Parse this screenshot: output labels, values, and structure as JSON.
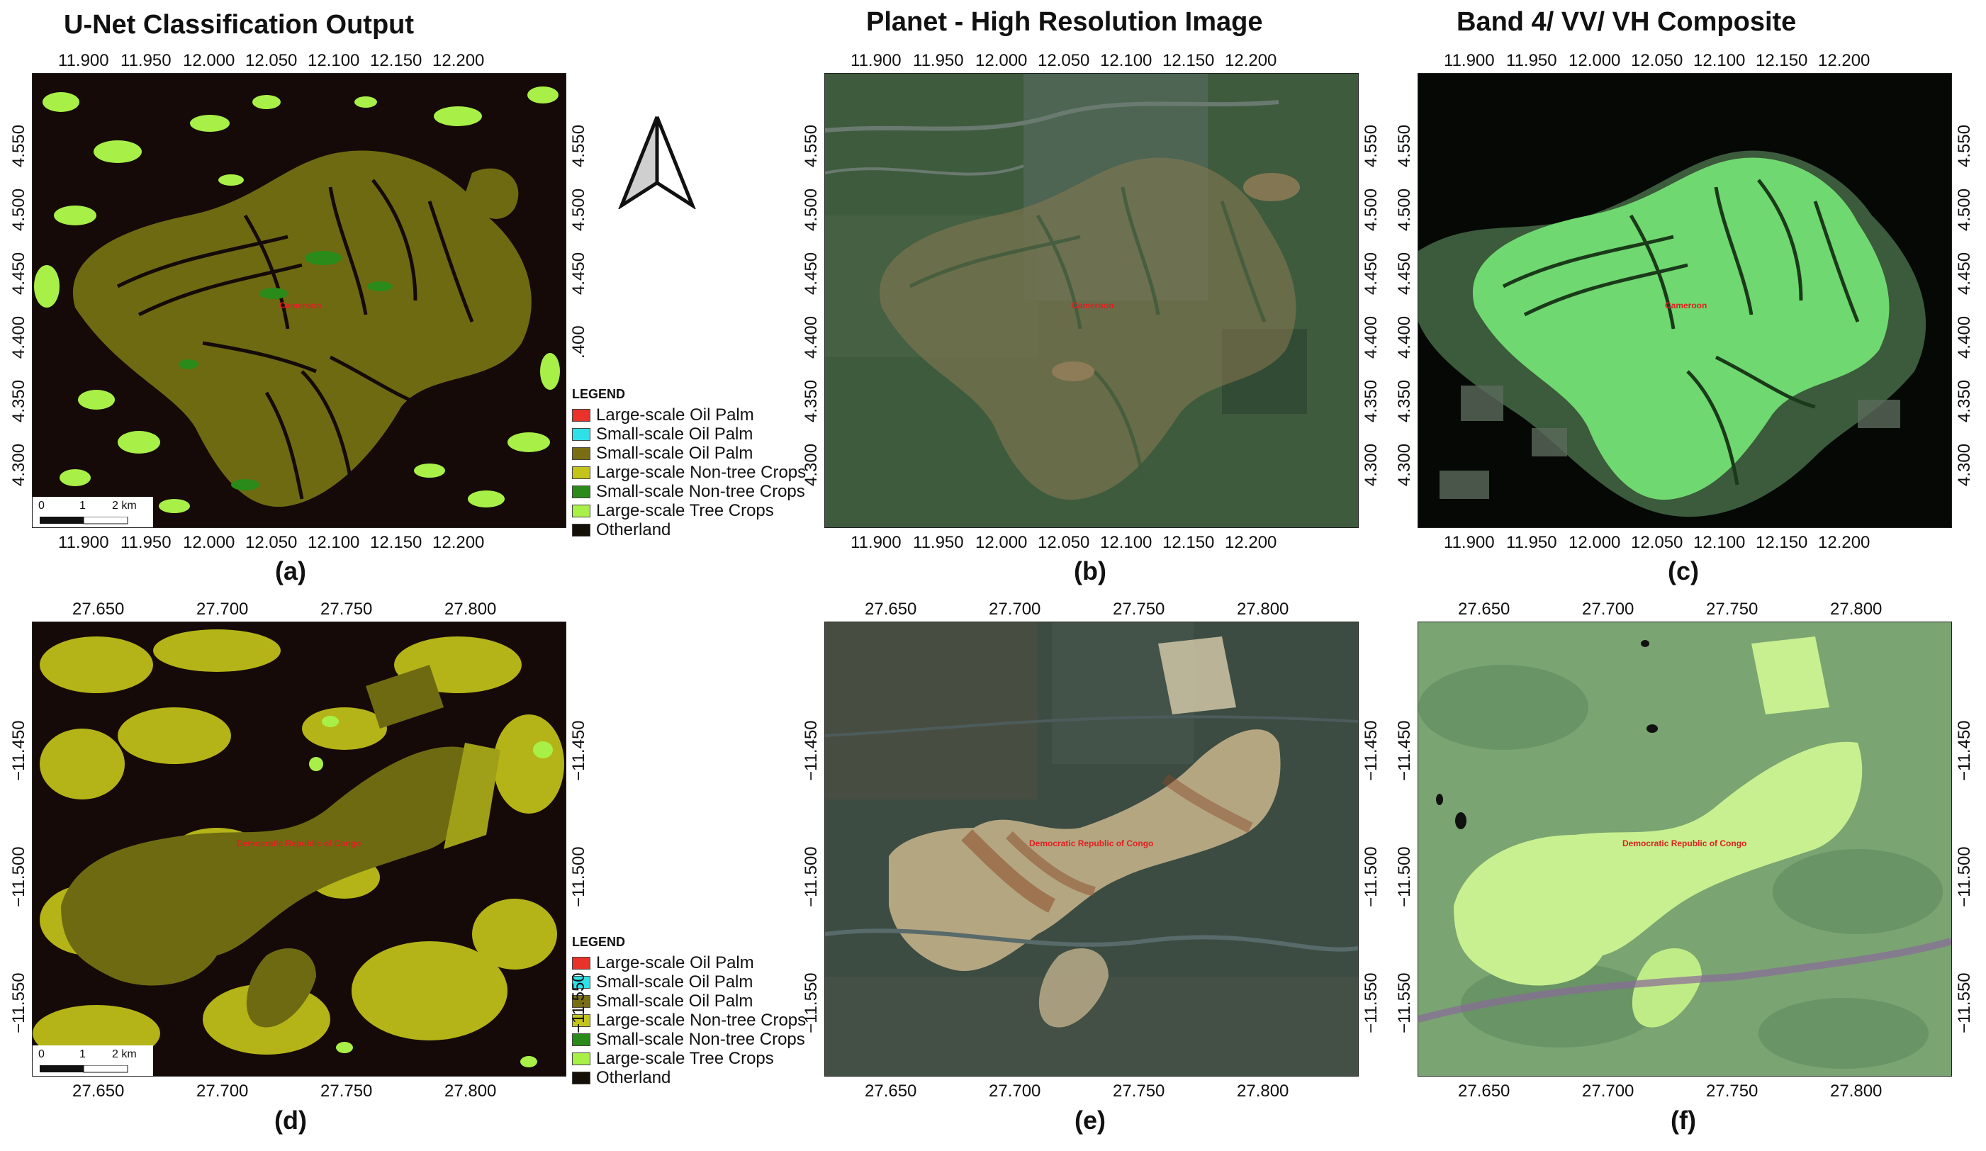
{
  "titles": {
    "col1": "U-Net Classification Output",
    "col2": "Planet - High Resolution Image",
    "col3": "Band 4/ VV/ VH Composite"
  },
  "panels": [
    "(a)",
    "(b)",
    "(c)",
    "(d)",
    "(e)",
    "(f)"
  ],
  "row1": {
    "lon_ticks": [
      "11.900",
      "11.950",
      "12.000",
      "12.050",
      "12.100",
      "12.150",
      "12.200"
    ],
    "lat_ticks_right_a": [
      "4.550",
      "4.500",
      "4.450",
      ".400"
    ],
    "lat_ticks_left_a": [
      "4.550",
      "4.500",
      "4.450",
      "4.400",
      "4.350",
      "4.300"
    ],
    "lat_ticks": [
      "4.550",
      "4.500",
      "4.450",
      "4.400",
      "4.350",
      "4.300"
    ],
    "place": "Cameroon"
  },
  "row2": {
    "lon_ticks": [
      "27.650",
      "27.700",
      "27.750",
      "27.800"
    ],
    "lat_ticks": [
      "−11.450",
      "−11.500",
      "−11.550"
    ],
    "place": "Democratic Republic of Congo"
  },
  "legend": {
    "title": "LEGEND",
    "items": [
      {
        "label": "Large-scale Oil Palm",
        "color": "#e8322a"
      },
      {
        "label": "Small-scale Oil Palm",
        "color": "#2fe0e8"
      },
      {
        "label": "Small-scale Oil Palm",
        "color": "#7a6e12"
      },
      {
        "label": "Large-scale Non-tree Crops",
        "color": "#c4c41a"
      },
      {
        "label": "Small-scale Non-tree Crops",
        "color": "#2a8a1a"
      },
      {
        "label": "Large-scale Tree Crops",
        "color": "#a8f048"
      },
      {
        "label": "Otherland",
        "color": "#141007"
      }
    ]
  },
  "scalebar": {
    "labels": [
      "0",
      "1",
      "2 km"
    ]
  },
  "north_arrow": "north-arrow-icon"
}
